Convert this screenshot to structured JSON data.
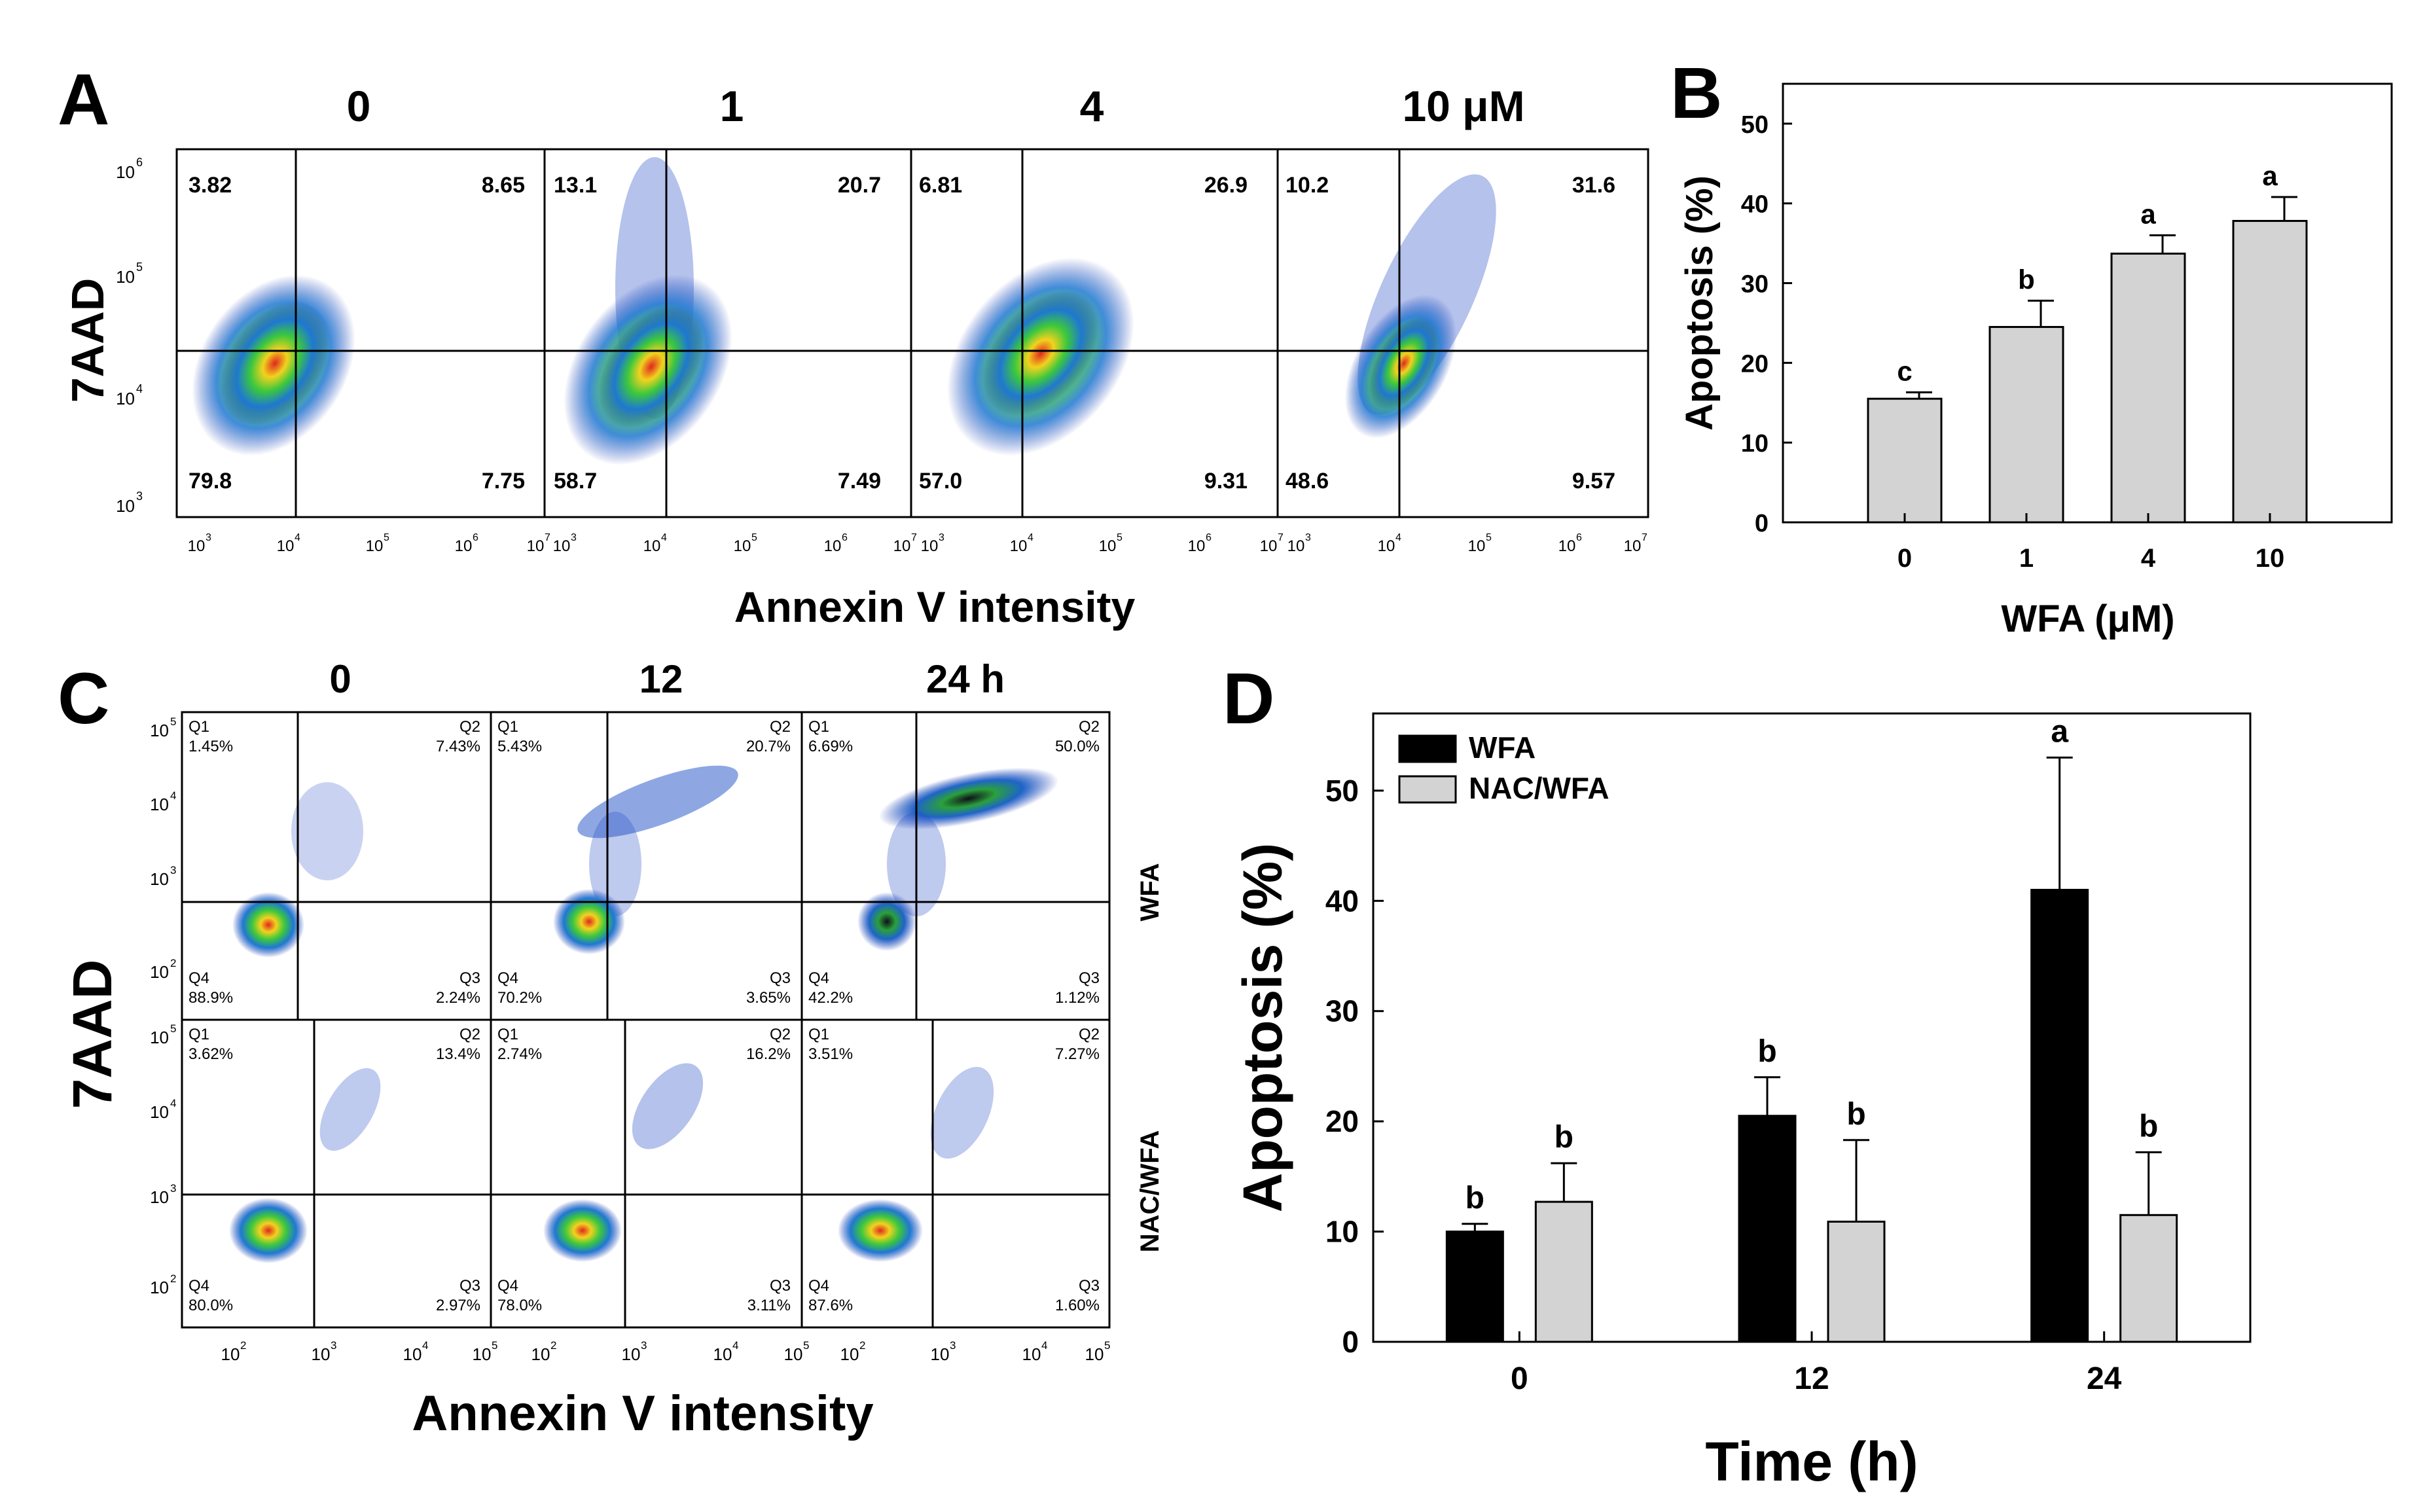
{
  "panels": {
    "A": {
      "letter": "A",
      "concentrations": [
        "0",
        "1",
        "4",
        "10 μM"
      ],
      "quadrants": [
        {
          "ul": "3.82",
          "ur": "8.65",
          "ll": "79.8",
          "lr": "7.75"
        },
        {
          "ul": "13.1",
          "ur": "20.7",
          "ll": "58.7",
          "lr": "7.49"
        },
        {
          "ul": "6.81",
          "ur": "26.9",
          "ll": "57.0",
          "lr": "9.31"
        },
        {
          "ul": "10.2",
          "ur": "31.6",
          "ll": "48.6",
          "lr": "9.57"
        }
      ],
      "ylabel": "7AAD",
      "xlabel": "Annexin V intensity",
      "ytick_exponents": [
        "3",
        "4",
        "5",
        "6"
      ],
      "xtick_exponents": [
        "3",
        "4",
        "5",
        "6",
        "7"
      ]
    },
    "C": {
      "letter": "C",
      "times": [
        "0",
        "12",
        "24 h"
      ],
      "rows": [
        "WFA",
        "NAC/WFA"
      ],
      "quadrants": [
        [
          {
            "q1": "1.45%",
            "q2": "7.43%",
            "q3": "2.24%",
            "q4": "88.9%"
          },
          {
            "q1": "5.43%",
            "q2": "20.7%",
            "q3": "3.65%",
            "q4": "70.2%"
          },
          {
            "q1": "6.69%",
            "q2": "50.0%",
            "q3": "1.12%",
            "q4": "42.2%"
          }
        ],
        [
          {
            "q1": "3.62%",
            "q2": "13.4%",
            "q3": "2.97%",
            "q4": "80.0%"
          },
          {
            "q1": "2.74%",
            "q2": "16.2%",
            "q3": "3.11%",
            "q4": "78.0%"
          },
          {
            "q1": "3.51%",
            "q2": "7.27%",
            "q3": "1.60%",
            "q4": "87.6%"
          }
        ]
      ],
      "quadrant_names": [
        "Q1",
        "Q2",
        "Q3",
        "Q4"
      ],
      "ylabel": "7AAD",
      "xlabel": "Annexin V intensity",
      "ytick_exponents": [
        "2",
        "3",
        "4",
        "5"
      ],
      "xtick_exponents": [
        "2",
        "3",
        "4",
        "5"
      ]
    },
    "tick_base": "10"
  },
  "chart_data": [
    {
      "id": "B",
      "letter": "B",
      "type": "bar",
      "title": "",
      "categories": [
        "0",
        "1",
        "4",
        "10"
      ],
      "values": [
        15.5,
        24.5,
        33.7,
        37.8
      ],
      "errors": [
        0.8,
        3.3,
        2.3,
        3.0
      ],
      "significance": [
        "c",
        "b",
        "a",
        "a"
      ],
      "xlabel": "WFA (μM)",
      "ylabel": "Apoptosis (%)",
      "ylim": [
        0,
        55
      ],
      "yticks": [
        0,
        10,
        20,
        30,
        40,
        50
      ],
      "bar_color": "#d3d3d3"
    },
    {
      "id": "D",
      "letter": "D",
      "type": "bar",
      "title": "",
      "categories": [
        "0",
        "12",
        "24"
      ],
      "series": [
        {
          "name": "WFA",
          "color": "#000000",
          "values": [
            10.0,
            20.5,
            41.0
          ],
          "errors": [
            0.7,
            3.5,
            12.0
          ],
          "significance": [
            "b",
            "b",
            "a"
          ]
        },
        {
          "name": "NAC/WFA",
          "color": "#d3d3d3",
          "values": [
            12.7,
            10.9,
            11.5
          ],
          "errors": [
            3.5,
            7.4,
            5.7
          ],
          "significance": [
            "b",
            "b",
            "b"
          ]
        }
      ],
      "xlabel": "Time (h)",
      "ylabel": "Apoptosis (%)",
      "ylim": [
        0,
        57
      ],
      "yticks": [
        0,
        10,
        20,
        30,
        40,
        50
      ],
      "legend_position": "top-left"
    }
  ]
}
